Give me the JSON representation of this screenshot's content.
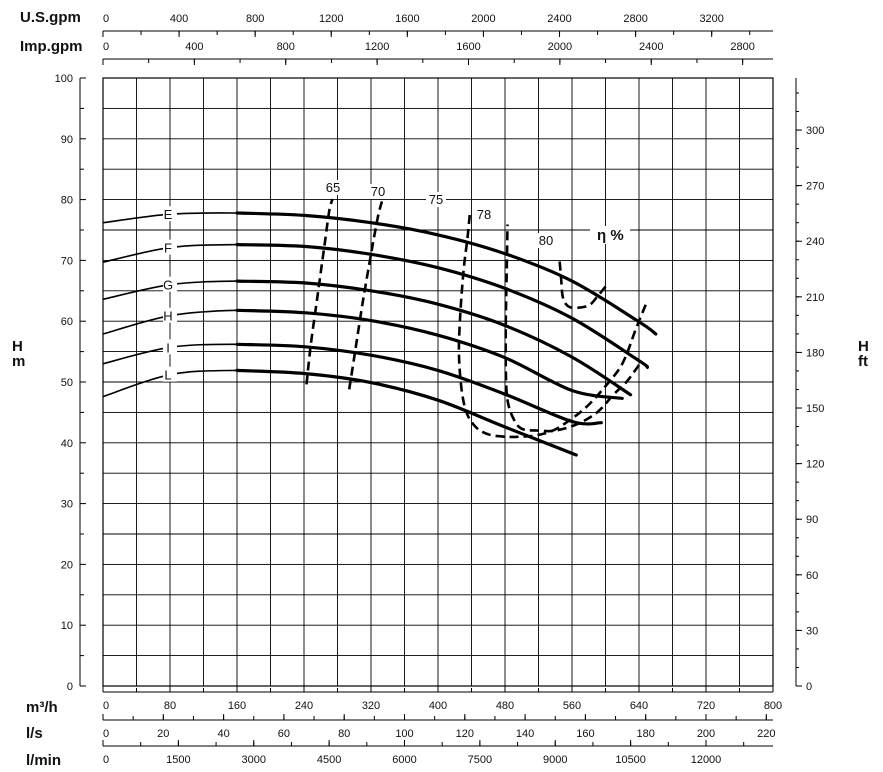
{
  "chart_data": {
    "type": "line",
    "top_axes": [
      {
        "unit": "U.S.gpm",
        "ticks": [
          "0",
          "400",
          "800",
          "1200",
          "1600",
          "2000",
          "2400",
          "2800",
          "3200"
        ],
        "step": 400
      },
      {
        "unit": "Imp.gpm",
        "ticks": [
          "0",
          "400",
          "800",
          "1200",
          "1600",
          "2000",
          "2400",
          "2800"
        ],
        "step": 400
      }
    ],
    "bottom_axes": [
      {
        "unit": "m³/h",
        "ticks": [
          "0",
          "80",
          "160",
          "240",
          "320",
          "400",
          "480",
          "560",
          "640",
          "720",
          "800"
        ],
        "step": 80
      },
      {
        "unit": "l/s",
        "ticks": [
          "0",
          "20",
          "40",
          "60",
          "80",
          "100",
          "120",
          "140",
          "160",
          "180",
          "200",
          "220"
        ],
        "step": 20
      },
      {
        "unit": "l/min",
        "ticks": [
          "0",
          "1500",
          "3000",
          "4500",
          "6000",
          "7500",
          "9000",
          "10500",
          "12000"
        ],
        "step": 1500
      }
    ],
    "left_axis": {
      "unit_top": "H",
      "unit_bottom": "m",
      "ticks": [
        "0",
        "10",
        "20",
        "30",
        "40",
        "50",
        "60",
        "70",
        "80",
        "90",
        "100"
      ],
      "ylim": [
        0,
        100
      ]
    },
    "right_axis": {
      "unit_top": "H",
      "unit_bottom": "ft",
      "ticks": [
        "0",
        "30",
        "60",
        "90",
        "120",
        "150",
        "180",
        "210",
        "240",
        "270",
        "300"
      ]
    },
    "xlim": [
      0,
      800
    ],
    "grid": true,
    "series": [
      {
        "name": "E",
        "x": [
          0,
          80,
          160,
          240,
          320,
          400,
          480,
          560,
          640,
          660
        ],
        "y": [
          76.2,
          77.6,
          77.8,
          77.4,
          76.2,
          74.2,
          71.1,
          66.6,
          59.9,
          57.9
        ]
      },
      {
        "name": "F",
        "x": [
          0,
          80,
          160,
          240,
          320,
          400,
          480,
          560,
          640,
          650
        ],
        "y": [
          69.7,
          72.1,
          72.6,
          72.3,
          71.0,
          68.8,
          65.4,
          60.5,
          53.5,
          52.4
        ]
      },
      {
        "name": "G",
        "x": [
          0,
          80,
          160,
          240,
          320,
          400,
          480,
          560,
          630
        ],
        "y": [
          63.6,
          66.0,
          66.6,
          66.3,
          65.0,
          62.8,
          59.3,
          54.1,
          47.9
        ]
      },
      {
        "name": "H",
        "x": [
          0,
          80,
          160,
          240,
          320,
          400,
          480,
          560,
          620
        ],
        "y": [
          57.9,
          60.9,
          61.8,
          61.4,
          60.1,
          57.7,
          54.0,
          48.6,
          47.3
        ]
      },
      {
        "name": "I",
        "x": [
          0,
          80,
          160,
          240,
          320,
          400,
          480,
          560,
          595
        ],
        "y": [
          53.0,
          55.7,
          56.2,
          55.8,
          54.4,
          51.9,
          48.0,
          43.5,
          43.3
        ]
      },
      {
        "name": "L",
        "x": [
          0,
          80,
          160,
          240,
          320,
          400,
          480,
          565
        ],
        "y": [
          47.6,
          51.2,
          51.9,
          51.4,
          49.9,
          47.0,
          42.6,
          38.0
        ]
      }
    ],
    "efficiency_title": "η %",
    "efficiency": [
      {
        "name": "65",
        "x": [
          243,
          248,
          256,
          264,
          270,
          274
        ],
        "y": [
          49.6,
          56,
          64,
          72,
          78,
          80.1
        ]
      },
      {
        "name": "70",
        "x": [
          294,
          301,
          310,
          320,
          328,
          333
        ],
        "y": [
          48.8,
          55,
          63,
          71,
          77,
          79.7
        ]
      },
      {
        "name": "75",
        "x": [
          648,
          637,
          620,
          598,
          578,
          560,
          540,
          520,
          500,
          480,
          460,
          445,
          434,
          428,
          425,
          427,
          431,
          435,
          438,
          400
        ],
        "y": [
          62.7,
          59,
          53,
          49,
          46,
          44,
          42.2,
          41.3,
          41,
          41,
          41.4,
          42.6,
          45,
          49,
          55,
          62,
          69,
          73.4,
          77.6,
          77.6
        ]
      },
      {
        "name": "78",
        "x": [
          640,
          625,
          610,
          590,
          565,
          540,
          520,
          500,
          490,
          483,
          481,
          481,
          482,
          483
        ],
        "y": [
          52.8,
          50,
          48,
          45,
          43,
          42,
          42,
          42.3,
          44,
          47,
          52,
          60,
          68,
          75.9
        ]
      },
      {
        "name": "80",
        "x": [
          600,
          590,
          580,
          565,
          555,
          549,
          547,
          545
        ],
        "y": [
          65.7,
          64,
          62.6,
          62.2,
          62.5,
          64,
          67,
          70.3
        ]
      }
    ],
    "efficiency_corrected": [
      {
        "name": "65",
        "x": [
          243,
          248,
          256,
          264,
          270,
          274
        ],
        "y": [
          49.6,
          56,
          64,
          72,
          78,
          80.1
        ]
      },
      {
        "name": "70",
        "x": [
          294,
          301,
          310,
          320,
          328,
          333
        ],
        "y": [
          48.8,
          55,
          63,
          71,
          77,
          79.7
        ]
      },
      {
        "name": "75",
        "x": [
          648,
          637,
          620,
          598,
          578,
          560,
          540,
          520,
          500,
          480,
          460,
          445,
          434,
          428,
          425,
          427,
          431,
          435,
          438,
          400
        ],
        "y": [
          62.7,
          59,
          53,
          49,
          46,
          44,
          42.2,
          41.3,
          41,
          41,
          41.4,
          42.6,
          45,
          49,
          55,
          62,
          69,
          73.4,
          77.6,
          77.6
        ]
      },
      {
        "name": "78",
        "x": [
          640,
          625,
          610,
          590,
          565,
          540,
          520,
          500,
          490,
          483,
          481,
          481,
          482,
          483
        ],
        "y": [
          52.8,
          50,
          48,
          45,
          43,
          42,
          42,
          42.3,
          44,
          47,
          52,
          60,
          68,
          75.9
        ]
      },
      {
        "name": "80",
        "x": [
          600,
          590,
          580,
          565,
          555,
          549,
          547,
          545
        ],
        "y": [
          65.7,
          64,
          62.6,
          62.2,
          62.5,
          64,
          67,
          70.3
        ]
      }
    ]
  }
}
